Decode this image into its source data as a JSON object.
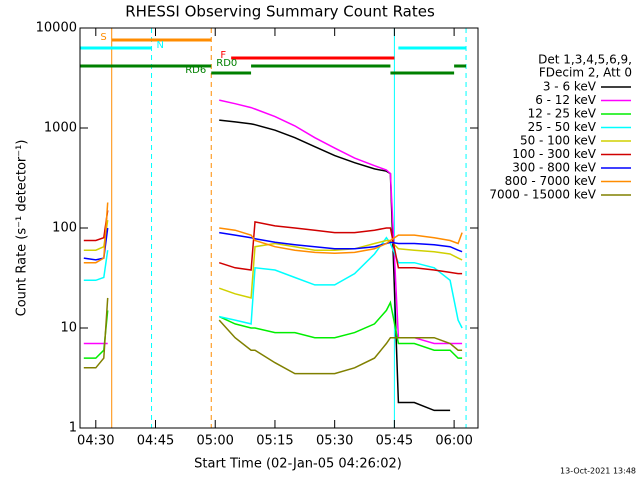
{
  "chart_data": {
    "type": "line",
    "title": "RHESSI Observing Summary Count Rates",
    "xlabel": "Start Time (02-Jan-05 04:26:02)",
    "ylabel": "Count Rate (s⁻¹ detector⁻¹)",
    "footnote": "13-Oct-2021 13:48",
    "legend_title": [
      "Det 1,3,4,5,6,9,",
      "FDecim 2, Att 0"
    ],
    "log_y": true,
    "ylim": [
      1,
      10000
    ],
    "yticks": [
      1,
      10,
      100,
      1000,
      10000
    ],
    "xlim": [
      "04:26:02",
      "06:06:00"
    ],
    "xticks": [
      "04:30",
      "04:45",
      "05:00",
      "05:15",
      "05:30",
      "05:45",
      "06:00"
    ],
    "x": [
      "04:27",
      "04:30",
      "04:32",
      "04:33",
      "04:45",
      "05:01",
      "05:05",
      "05:09",
      "05:10",
      "05:15",
      "05:20",
      "05:25",
      "05:30",
      "05:35",
      "05:40",
      "05:43",
      "05:44",
      "05:46",
      "05:50",
      "05:55",
      "05:59",
      "06:01",
      "06:02"
    ],
    "series": [
      {
        "name": "3 - 6 keV",
        "color": "#000000",
        "values": [
          null,
          null,
          null,
          null,
          null,
          1200,
          1150,
          1100,
          1080,
          950,
          800,
          650,
          530,
          450,
          390,
          370,
          350,
          1.8,
          1.8,
          1.5,
          1.5,
          null,
          null
        ]
      },
      {
        "name": "6 - 12 keV",
        "color": "#ff00ff",
        "values": [
          7,
          7,
          7,
          7,
          null,
          1900,
          1750,
          1600,
          1550,
          1300,
          1050,
          800,
          630,
          500,
          420,
          380,
          350,
          8,
          8,
          7,
          7,
          7,
          7
        ]
      },
      {
        "name": "12 - 25 keV",
        "color": "#00ee00",
        "values": [
          5,
          5,
          6,
          15,
          null,
          13,
          11,
          10,
          10,
          9,
          9,
          8,
          8,
          9,
          11,
          15,
          18,
          7,
          7,
          6,
          6,
          5,
          5
        ]
      },
      {
        "name": "25 - 50 keV",
        "color": "#00ffff",
        "values": [
          30,
          30,
          32,
          60,
          null,
          13,
          12,
          11,
          40,
          38,
          32,
          27,
          27,
          35,
          55,
          80,
          70,
          45,
          45,
          40,
          30,
          12,
          10
        ]
      },
      {
        "name": "50 - 100 keV",
        "color": "#d0d000",
        "values": [
          60,
          60,
          65,
          120,
          null,
          25,
          22,
          20,
          65,
          70,
          65,
          60,
          60,
          62,
          70,
          75,
          75,
          62,
          60,
          58,
          55,
          50,
          48
        ]
      },
      {
        "name": "100 - 300 keV",
        "color": "#d00000",
        "values": [
          75,
          75,
          80,
          150,
          null,
          45,
          40,
          38,
          115,
          105,
          100,
          95,
          90,
          90,
          95,
          100,
          100,
          40,
          40,
          38,
          36,
          35,
          35
        ]
      },
      {
        "name": "300 - 800 keV",
        "color": "#0000ff",
        "values": [
          50,
          48,
          50,
          100,
          null,
          90,
          85,
          80,
          78,
          72,
          68,
          65,
          62,
          62,
          65,
          70,
          72,
          70,
          70,
          68,
          65,
          60,
          58
        ]
      },
      {
        "name": "800 - 7000 keV",
        "color": "#ff8c00",
        "values": [
          45,
          45,
          50,
          180,
          null,
          100,
          95,
          85,
          75,
          65,
          60,
          57,
          56,
          57,
          62,
          70,
          75,
          85,
          85,
          80,
          75,
          70,
          90
        ]
      },
      {
        "name": "7000 - 15000 keV",
        "color": "#808000",
        "values": [
          4,
          4,
          5,
          20,
          null,
          12,
          8,
          6,
          6,
          4.5,
          3.5,
          3.5,
          3.5,
          4,
          5,
          7,
          8,
          8,
          8,
          8,
          7,
          6,
          6
        ]
      }
    ],
    "flags": [
      {
        "label": "S",
        "color": "#ff8c00",
        "segments": [
          [
            "04:34",
            "04:59"
          ]
        ]
      },
      {
        "label": "N",
        "color": "#00ffff",
        "segments": [
          [
            "04:26:02",
            "04:44"
          ],
          [
            "05:46",
            "06:03"
          ]
        ]
      },
      {
        "label": "F",
        "color": "#ff0000",
        "segments": [
          [
            "05:04",
            "05:45"
          ]
        ]
      },
      {
        "label": "RD0",
        "color": "#008000",
        "segments": [
          [
            "04:26:02",
            "04:59"
          ],
          [
            "05:09",
            "05:44"
          ],
          [
            "06:00",
            "06:03"
          ]
        ]
      },
      {
        "label": "RD6",
        "color": "#008000",
        "segments": [
          [
            "04:59",
            "05:09"
          ],
          [
            "05:44",
            "06:00"
          ]
        ]
      }
    ],
    "markers": [
      {
        "x": "04:26:02",
        "color": "#00ffff",
        "dashed": false
      },
      {
        "x": "04:34",
        "color": "#ff8c00",
        "dashed": false
      },
      {
        "x": "04:44",
        "color": "#00ffff",
        "dashed": true
      },
      {
        "x": "04:59",
        "color": "#ff8c00",
        "dashed": true
      },
      {
        "x": "05:45",
        "color": "#00ffff",
        "dashed": false
      },
      {
        "x": "06:03",
        "color": "#00ffff",
        "dashed": true
      }
    ]
  }
}
